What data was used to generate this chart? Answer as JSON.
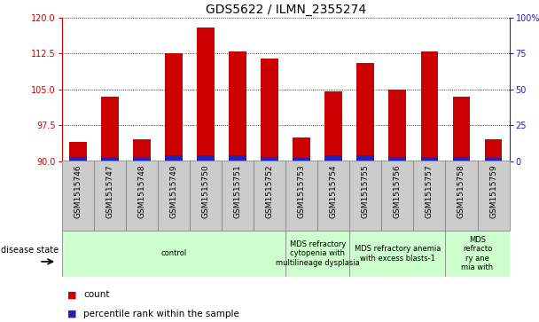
{
  "title": "GDS5622 / ILMN_2355274",
  "samples": [
    "GSM1515746",
    "GSM1515747",
    "GSM1515748",
    "GSM1515749",
    "GSM1515750",
    "GSM1515751",
    "GSM1515752",
    "GSM1515753",
    "GSM1515754",
    "GSM1515755",
    "GSM1515756",
    "GSM1515757",
    "GSM1515758",
    "GSM1515759"
  ],
  "counts": [
    94.0,
    103.5,
    94.5,
    112.5,
    118.0,
    113.0,
    111.5,
    95.0,
    104.5,
    110.5,
    105.0,
    113.0,
    103.5,
    94.5
  ],
  "pct_ranks": [
    3,
    3,
    2,
    4,
    4,
    4,
    3,
    2,
    4,
    4,
    3,
    3,
    3,
    2
  ],
  "ylim_left": [
    90,
    120
  ],
  "yticks_left": [
    90,
    97.5,
    105,
    112.5,
    120
  ],
  "ylim_right": [
    0,
    100
  ],
  "yticks_right": [
    0,
    25,
    50,
    75,
    100
  ],
  "bar_color_red": "#CC0000",
  "bar_color_blue": "#2222BB",
  "bar_width": 0.55,
  "left_axis_color": "#CC0000",
  "right_axis_color": "#2222BB",
  "disease_groups": [
    {
      "label": "control",
      "start": 0,
      "end": 7
    },
    {
      "label": "MDS refractory\ncytopenia with\nmultilineage dysplasia",
      "start": 7,
      "end": 9
    },
    {
      "label": "MDS refractory anemia\nwith excess blasts-1",
      "start": 9,
      "end": 12
    },
    {
      "label": "MDS\nrefracto\nry ane\nmia with",
      "start": 12,
      "end": 14
    }
  ],
  "disease_group_color": "#ccffcc",
  "disease_group_edge": "#888888",
  "sample_box_color": "#cccccc",
  "sample_box_edge": "#888888",
  "legend_count_label": "count",
  "legend_pct_label": "percentile rank within the sample",
  "disease_state_label": "disease state",
  "title_fontsize": 10,
  "sample_fontsize": 6.5,
  "disease_fontsize": 6,
  "legend_fontsize": 7.5,
  "ytick_fontsize": 7
}
